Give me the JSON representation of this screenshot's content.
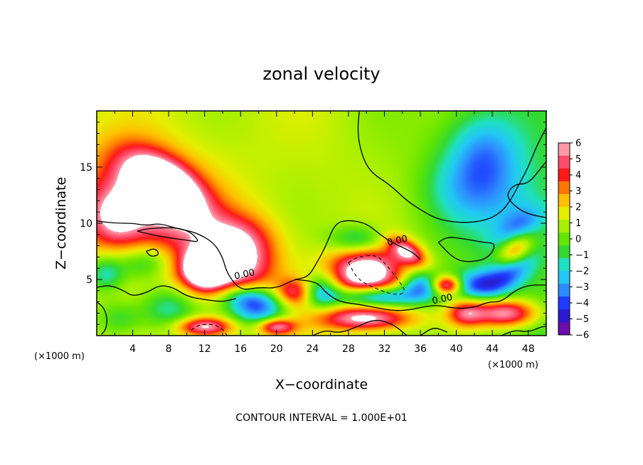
{
  "chart_data": {
    "type": "heatmap",
    "title": "zonal velocity",
    "xlabel": "X−coordinate",
    "ylabel": "Z−coordinate",
    "x_unit": "(×1000 m)",
    "y_unit": "(×1000 m)",
    "xlim": [
      0,
      50
    ],
    "ylim": [
      0,
      20
    ],
    "x_ticks": [
      4,
      8,
      12,
      16,
      20,
      24,
      28,
      32,
      36,
      40,
      44,
      48
    ],
    "y_ticks": [
      5,
      10,
      15
    ],
    "colorbar": {
      "ticks": [
        6,
        5,
        4,
        3,
        2,
        1,
        0,
        -1,
        -2,
        -3,
        -4,
        -5,
        -6
      ],
      "tick_labels": [
        "6",
        "5",
        "4",
        "3",
        "2",
        "1",
        "0",
        "−1",
        "−2",
        "−3",
        "−4",
        "−5",
        "−6"
      ],
      "range": [
        -6,
        6
      ],
      "colors": [
        "#6a0dad",
        "#2a1bd1",
        "#1e3cff",
        "#2e8bff",
        "#22c7f5",
        "#1fe0c0",
        "#33d933",
        "#66e600",
        "#a6f000",
        "#e6ef00",
        "#ffc000",
        "#ff7700",
        "#ff1a1a",
        "#ff4d6a",
        "#ff9aa8"
      ],
      "over_color": "#ffffff",
      "under_color": "#ffffff"
    },
    "contour_labels": [
      {
        "text": "0.00",
        "x": 16.5,
        "z": 5.2
      },
      {
        "text": "0.00",
        "x": 33.5,
        "z": 8.2
      },
      {
        "text": "0.00",
        "x": 38.5,
        "z": 3.0
      }
    ],
    "footer": "CONTOUR INTERVAL = 1.000E+01",
    "features": [
      {
        "x": 7.5,
        "z": 13.3,
        "value": 7.0,
        "sx": 4.5,
        "sz": 2.2,
        "rot": -0.45
      },
      {
        "x": 6.0,
        "z": 11.5,
        "value": 4.5,
        "sx": 7.0,
        "sz": 4.5,
        "rot": -0.3
      },
      {
        "x": 2.0,
        "z": 10.5,
        "value": 3.5,
        "sx": 3.0,
        "sz": 2.5,
        "rot": 0
      },
      {
        "x": 12.0,
        "z": 6.0,
        "value": 6.5,
        "sx": 2.0,
        "sz": 1.5,
        "rot": 0
      },
      {
        "x": 15.5,
        "z": 8.0,
        "value": 5.0,
        "sx": 4.0,
        "sz": 2.5,
        "rot": 0
      },
      {
        "x": 14.0,
        "z": 5.5,
        "value": 4.0,
        "sx": 5.0,
        "sz": 2.0,
        "rot": 0
      },
      {
        "x": 22.0,
        "z": 3.8,
        "value": 4.0,
        "sx": 2.0,
        "sz": 1.2,
        "rot": 0
      },
      {
        "x": 30.0,
        "z": 5.5,
        "value": 7.0,
        "sx": 4.0,
        "sz": 2.2,
        "rot": 0
      },
      {
        "x": 34.5,
        "z": 7.5,
        "value": 5.0,
        "sx": 2.2,
        "sz": 1.0,
        "rot": -0.4
      },
      {
        "x": 39.0,
        "z": 4.5,
        "value": 6.5,
        "sx": 1.6,
        "sz": 0.8,
        "rot": 0
      },
      {
        "x": 46.5,
        "z": 7.5,
        "value": 6.5,
        "sx": 2.2,
        "sz": 1.3,
        "rot": 0.5
      },
      {
        "x": 45.5,
        "z": 2.0,
        "value": 6.0,
        "sx": 3.5,
        "sz": 1.2,
        "rot": 0
      },
      {
        "x": 30.0,
        "z": 1.5,
        "value": 5.5,
        "sx": 5.0,
        "sz": 1.0,
        "rot": 0
      },
      {
        "x": 12.0,
        "z": 0.8,
        "value": 5.5,
        "sx": 3.0,
        "sz": 0.8,
        "rot": 0
      },
      {
        "x": 20.0,
        "z": 0.8,
        "value": 5.0,
        "sx": 2.0,
        "sz": 0.7,
        "rot": 0
      },
      {
        "x": 41.0,
        "z": 2.0,
        "value": 4.0,
        "sx": 2.0,
        "sz": 1.2,
        "rot": 0
      },
      {
        "x": 43.0,
        "z": 16.5,
        "value": -3.0,
        "sx": 4.0,
        "sz": 3.5,
        "rot": 0
      },
      {
        "x": 45.0,
        "z": 12.0,
        "value": -2.0,
        "sx": 5.0,
        "sz": 4.0,
        "rot": 0
      },
      {
        "x": 40.0,
        "z": 13.0,
        "value": -1.5,
        "sx": 4.0,
        "sz": 3.0,
        "rot": 0
      },
      {
        "x": 18.0,
        "z": 2.5,
        "value": -5.0,
        "sx": 3.0,
        "sz": 1.5,
        "rot": 0
      },
      {
        "x": 25.0,
        "z": 4.0,
        "value": -4.0,
        "sx": 2.0,
        "sz": 1.5,
        "rot": 0
      },
      {
        "x": 31.0,
        "z": 3.5,
        "value": -5.5,
        "sx": 4.5,
        "sz": 0.9,
        "rot": 0
      },
      {
        "x": 36.0,
        "z": 4.5,
        "value": -4.0,
        "sx": 2.0,
        "sz": 1.2,
        "rot": 0
      },
      {
        "x": 29.0,
        "z": 8.5,
        "value": -3.0,
        "sx": 3.0,
        "sz": 1.2,
        "rot": 0
      },
      {
        "x": 46.0,
        "z": 6.0,
        "value": -5.0,
        "sx": 3.0,
        "sz": 1.5,
        "rot": 0.5
      },
      {
        "x": 47.0,
        "z": 9.5,
        "value": -3.0,
        "sx": 3.0,
        "sz": 1.5,
        "rot": 0.5
      },
      {
        "x": 42.0,
        "z": 4.5,
        "value": -4.0,
        "sx": 3.0,
        "sz": 1.2,
        "rot": 0
      },
      {
        "x": 5.5,
        "z": 6.5,
        "value": -3.0,
        "sx": 3.0,
        "sz": 1.5,
        "rot": 0
      },
      {
        "x": 1.0,
        "z": 5.5,
        "value": -3.0,
        "sx": 2.0,
        "sz": 1.5,
        "rot": 0
      },
      {
        "x": 8.0,
        "z": 2.5,
        "value": -3.0,
        "sx": 3.0,
        "sz": 2.0,
        "rot": 0
      },
      {
        "x": 2.5,
        "z": 1.5,
        "value": -2.0,
        "sx": 2.5,
        "sz": 1.5,
        "rot": 0
      },
      {
        "x": 16.0,
        "z": 3.5,
        "value": -2.5,
        "sx": 2.5,
        "sz": 1.0,
        "rot": 0
      }
    ],
    "zero_contours": [
      [
        [
          29.2,
          20
        ],
        [
          29.0,
          18
        ],
        [
          29.5,
          16
        ],
        [
          30.5,
          14.5
        ],
        [
          32.5,
          13.5
        ],
        [
          34.5,
          12.0
        ],
        [
          36.0,
          11.2
        ],
        [
          38.0,
          10.3
        ],
        [
          41.0,
          10.0
        ],
        [
          43.5,
          10.3
        ],
        [
          45.0,
          11.0
        ],
        [
          46.0,
          12.0
        ],
        [
          47.0,
          13.5
        ],
        [
          48.0,
          15.0
        ],
        [
          49.0,
          17.0
        ],
        [
          50,
          18.5
        ]
      ],
      [
        [
          50,
          10.5
        ],
        [
          48.0,
          10.8
        ],
        [
          46.5,
          11.5
        ],
        [
          45.5,
          12.5
        ],
        [
          46.5,
          13.5
        ],
        [
          48.0,
          13.5
        ],
        [
          49.5,
          15.0
        ],
        [
          50,
          15.5
        ]
      ],
      [
        [
          0,
          10.2
        ],
        [
          2.0,
          10.0
        ],
        [
          4.0,
          10.0
        ],
        [
          5.5,
          9.8
        ],
        [
          7.0,
          10.0
        ],
        [
          9.0,
          9.5
        ],
        [
          11.0,
          9.2
        ],
        [
          13.0,
          8.3
        ],
        [
          14.0,
          7.0
        ],
        [
          14.5,
          5.5
        ],
        [
          16.0,
          4.0
        ],
        [
          18.0,
          4.3
        ],
        [
          20.0,
          4.2
        ],
        [
          22.0,
          5.0
        ],
        [
          23.5,
          5.2
        ],
        [
          24.5,
          6.5
        ],
        [
          25.5,
          8.0
        ],
        [
          26.5,
          10.0
        ],
        [
          28.0,
          10.3
        ],
        [
          30.0,
          10.0
        ],
        [
          31.5,
          9.0
        ],
        [
          33.0,
          8.2
        ],
        [
          35.0,
          7.5
        ],
        [
          36.0,
          6.8
        ]
      ],
      [
        [
          0,
          4.3
        ],
        [
          1.5,
          4.5
        ],
        [
          3.0,
          4.0
        ],
        [
          4.0,
          3.5
        ],
        [
          5.5,
          3.8
        ],
        [
          7.0,
          4.5
        ],
        [
          8.5,
          4.3
        ],
        [
          10.0,
          3.5
        ],
        [
          12.0,
          3.2
        ],
        [
          14.0,
          3.0
        ],
        [
          15.5,
          3.3
        ]
      ],
      [
        [
          4.5,
          9.3
        ],
        [
          6.0,
          9.0
        ],
        [
          8.0,
          8.7
        ],
        [
          10.0,
          8.5
        ],
        [
          11.5,
          8.3
        ],
        [
          10.5,
          9.2
        ],
        [
          9.0,
          9.6
        ],
        [
          7.0,
          9.6
        ],
        [
          5.5,
          9.5
        ],
        [
          4.5,
          9.3
        ]
      ],
      [
        [
          22.0,
          5.0
        ],
        [
          24.5,
          4.8
        ],
        [
          25.5,
          3.8
        ],
        [
          27.0,
          3.0
        ],
        [
          29.0,
          2.8
        ],
        [
          31.0,
          2.5
        ],
        [
          33.0,
          2.2
        ],
        [
          35.0,
          2.3
        ],
        [
          36.5,
          2.6
        ],
        [
          38.0,
          2.7
        ],
        [
          40.0,
          2.4
        ],
        [
          42.0,
          2.5
        ],
        [
          43.5,
          3.0
        ],
        [
          45.0,
          3.0
        ],
        [
          46.5,
          4.0
        ],
        [
          48.0,
          4.5
        ],
        [
          50,
          4.5
        ]
      ],
      [
        [
          38.0,
          8.3
        ],
        [
          39.0,
          8.8
        ],
        [
          41.0,
          8.6
        ],
        [
          43.0,
          8.3
        ],
        [
          44.5,
          8.2
        ],
        [
          43.5,
          6.8
        ],
        [
          41.0,
          6.5
        ],
        [
          39.5,
          7.0
        ],
        [
          38.0,
          8.3
        ]
      ],
      [
        [
          5.5,
          7.5
        ],
        [
          6.5,
          7.8
        ],
        [
          7.0,
          7.2
        ],
        [
          6.0,
          7.0
        ],
        [
          5.5,
          7.5
        ]
      ],
      [
        [
          0.5,
          0.1
        ],
        [
          1.0,
          0.5
        ],
        [
          1.2,
          1.5
        ],
        [
          0.8,
          2.5
        ],
        [
          0,
          3.0
        ]
      ],
      [
        [
          24.0,
          0
        ],
        [
          25.5,
          0.5
        ],
        [
          27.0,
          0.2
        ],
        [
          29.0,
          0.8
        ],
        [
          31.0,
          1.5
        ],
        [
          33.0,
          1.0
        ],
        [
          34.5,
          0.0
        ]
      ],
      [
        [
          36.0,
          0
        ],
        [
          37.5,
          0.8
        ],
        [
          39.0,
          0.3
        ]
      ],
      [
        [
          45.0,
          0
        ],
        [
          46.5,
          0.5
        ],
        [
          48.0,
          0.3
        ],
        [
          49.5,
          0.8
        ],
        [
          50,
          0.8
        ]
      ]
    ],
    "dashed_contours": [
      [
        [
          28.0,
          6.5
        ],
        [
          29.0,
          7.0
        ],
        [
          31.0,
          7.2
        ],
        [
          32.0,
          6.5
        ],
        [
          33.5,
          5.0
        ],
        [
          34.5,
          3.8
        ],
        [
          33.0,
          3.6
        ],
        [
          31.0,
          4.2
        ],
        [
          29.0,
          5.0
        ],
        [
          28.0,
          6.5
        ]
      ],
      [
        [
          10.5,
          0.5
        ],
        [
          11.5,
          1.0
        ],
        [
          13.0,
          1.0
        ],
        [
          14.0,
          0.6
        ],
        [
          14.5,
          0
        ]
      ]
    ]
  }
}
